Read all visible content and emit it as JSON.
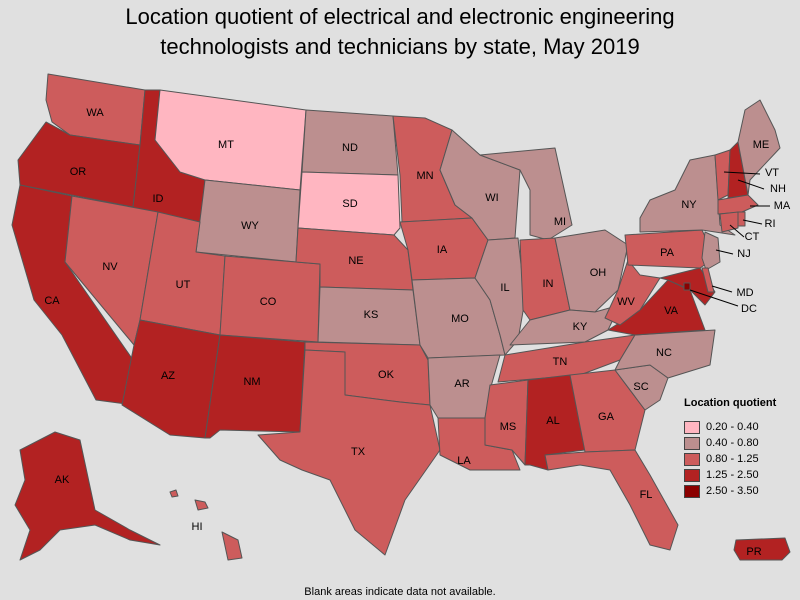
{
  "title_line1": "Location quotient of electrical and electronic engineering",
  "title_line2": "technologists and technicians by state, May 2019",
  "footer": "Blank areas indicate data not available.",
  "legend": {
    "title": "Location quotient",
    "items": [
      {
        "label": "0.20 - 0.40",
        "color": "#ffb6c1"
      },
      {
        "label": "0.40 - 0.80",
        "color": "#bc8f8f"
      },
      {
        "label": "0.80 - 1.25",
        "color": "#cd5c5c"
      },
      {
        "label": "1.25 - 2.50",
        "color": "#b22222"
      },
      {
        "label": "2.50 - 3.50",
        "color": "#8b0000"
      }
    ]
  },
  "states": {
    "WA": "0.80 - 1.25",
    "OR": "1.25 - 2.50",
    "CA": "1.25 - 2.50",
    "ID": "1.25 - 2.50",
    "NV": "0.80 - 1.25",
    "MT": "0.20 - 0.40",
    "WY": "0.40 - 0.80",
    "UT": "0.80 - 1.25",
    "AZ": "1.25 - 2.50",
    "CO": "0.80 - 1.25",
    "NM": "1.25 - 2.50",
    "ND": "0.40 - 0.80",
    "SD": "0.20 - 0.40",
    "NE": "0.80 - 1.25",
    "KS": "0.40 - 0.80",
    "OK": "0.80 - 1.25",
    "TX": "0.80 - 1.25",
    "MN": "0.80 - 1.25",
    "IA": "0.80 - 1.25",
    "MO": "0.40 - 0.80",
    "AR": "0.40 - 0.80",
    "LA": "0.80 - 1.25",
    "WI": "0.40 - 0.80",
    "IL": "0.40 - 0.80",
    "MI": "0.40 - 0.80",
    "IN": "0.80 - 1.25",
    "OH": "0.40 - 0.80",
    "KY": "0.40 - 0.80",
    "TN": "0.80 - 1.25",
    "MS": "0.80 - 1.25",
    "AL": "1.25 - 2.50",
    "GA": "0.80 - 1.25",
    "FL": "0.80 - 1.25",
    "SC": "0.40 - 0.80",
    "NC": "0.40 - 0.80",
    "VA": "1.25 - 2.50",
    "WV": "0.80 - 1.25",
    "PA": "0.80 - 1.25",
    "NY": "0.40 - 0.80",
    "NJ": "0.40 - 0.80",
    "MD": "1.25 - 2.50",
    "DC": "2.50 - 3.50",
    "DE": "0.80 - 1.25",
    "CT": "0.80 - 1.25",
    "RI": "0.80 - 1.25",
    "MA": "0.80 - 1.25",
    "VT": "0.80 - 1.25",
    "NH": "1.25 - 2.50",
    "ME": "0.40 - 0.80",
    "AK": "1.25 - 2.50",
    "HI": "0.80 - 1.25",
    "PR": "1.25 - 2.50"
  }
}
